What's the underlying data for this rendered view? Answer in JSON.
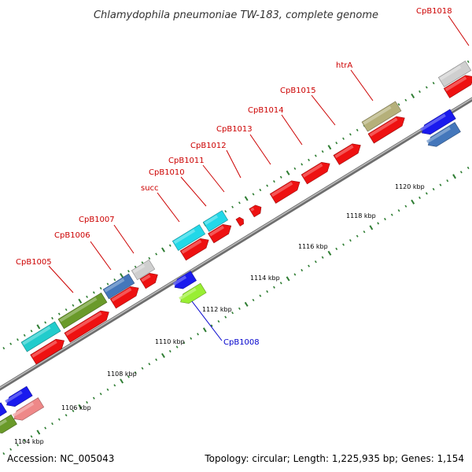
{
  "title": "Chlamydophila pneumoniae TW-183, complete genome",
  "footer": {
    "accession": "Accession: NC_005043",
    "summary": "Topology: circular; Length: 1,225,935 bp; Genes: 1,154"
  },
  "colors": {
    "forward_label": "#cc0000",
    "reverse_label": "#0000cc",
    "backbone": "#888888",
    "tick": "#2e7d32"
  },
  "kbp_labels": [
    "1104 kbp",
    "1106 kbp",
    "1108 kbp",
    "1110 kbp",
    "1112 kbp",
    "1114 kbp",
    "1116 kbp",
    "1118 kbp",
    "1120 kbp"
  ],
  "gene_labels": [
    {
      "name": "CpB1005",
      "strand": "forward"
    },
    {
      "name": "CpB1006",
      "strand": "forward"
    },
    {
      "name": "CpB1007",
      "strand": "forward"
    },
    {
      "name": "succ",
      "strand": "forward"
    },
    {
      "name": "CpB1010",
      "strand": "forward"
    },
    {
      "name": "CpB1011",
      "strand": "forward"
    },
    {
      "name": "CpB1012",
      "strand": "forward"
    },
    {
      "name": "CpB1013",
      "strand": "forward"
    },
    {
      "name": "CpB1014",
      "strand": "forward"
    },
    {
      "name": "CpB1015",
      "strand": "forward"
    },
    {
      "name": "htrA",
      "strand": "forward"
    },
    {
      "name": "CpB1018",
      "strand": "forward"
    },
    {
      "name": "CpB1008",
      "strand": "reverse"
    }
  ]
}
